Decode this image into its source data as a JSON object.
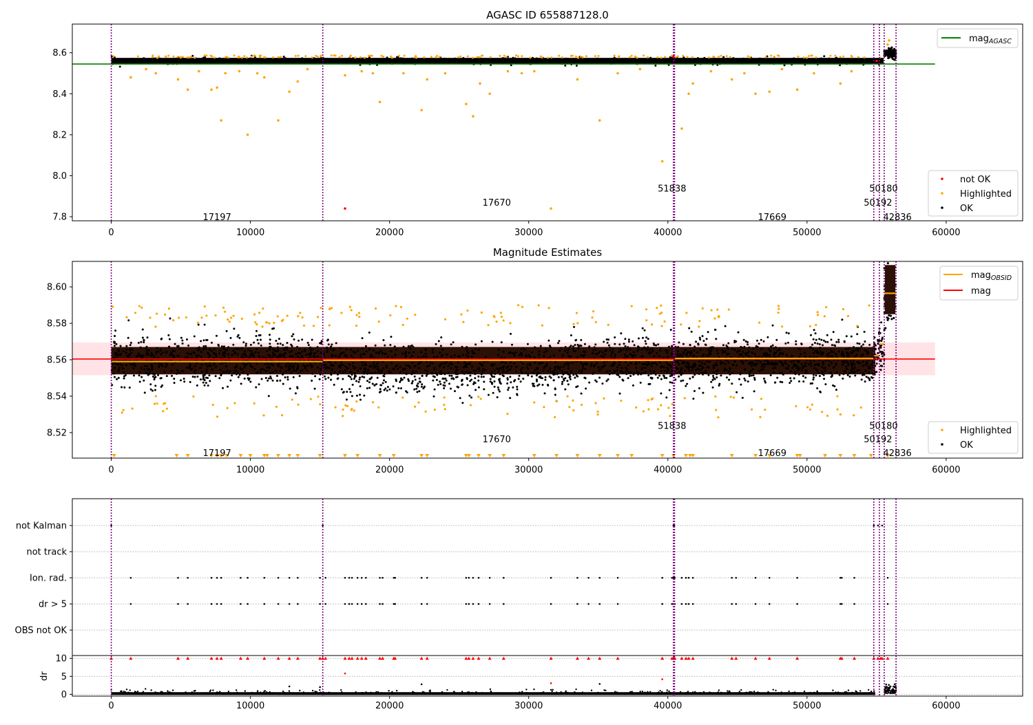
{
  "titles": {
    "top": "AGASC ID 655887128.0",
    "middle": "Magnitude Estimates"
  },
  "colors": {
    "ok": "#000000",
    "highlighted": "#ffa500",
    "not_ok": "#ff0000",
    "mag_agasc": "#008000",
    "mag_obsid": "#ffa500",
    "mag": "#ff0000",
    "obs_boundary": "#800080",
    "band": "#ffc0c8",
    "dense_band": "#2b1005"
  },
  "obsids": [
    {
      "label": "17197",
      "start": 0
    },
    {
      "label": "17670",
      "start": 15200
    },
    {
      "label": "51838",
      "start": 40400
    },
    {
      "label": "17669",
      "start": 40480
    },
    {
      "label": "50180",
      "start": 54800
    },
    {
      "label": "50192",
      "start": 55200
    },
    {
      "label": "42836",
      "start": 55550
    },
    {
      "label": "",
      "start": 56400
    }
  ],
  "chart_data": [
    {
      "type": "scatter",
      "name": "top",
      "title": "AGASC ID 655887128.0",
      "xlabel": "",
      "ylabel": "",
      "xlim": [
        -2800,
        65500
      ],
      "ylim": [
        7.78,
        8.74
      ],
      "xticks": [
        0,
        10000,
        20000,
        30000,
        40000,
        50000,
        60000
      ],
      "yticks": [
        7.8,
        8.0,
        8.2,
        8.4,
        8.6
      ],
      "ytick_labels": [
        "7.8",
        "8.0",
        "8.2",
        "8.4",
        "8.6"
      ],
      "legend_upper": {
        "position": "upper right",
        "entries": [
          {
            "label": "mag",
            "sub": "AGASC",
            "kind": "line",
            "color": "#008000"
          }
        ]
      },
      "legend_lower": {
        "position": "lower right",
        "entries": [
          {
            "label": "not OK",
            "kind": "dot",
            "color": "#ff0000"
          },
          {
            "label": "Highlighted",
            "kind": "dot",
            "color": "#ffa500"
          },
          {
            "label": "OK",
            "kind": "dot",
            "color": "#000000"
          }
        ]
      },
      "mag_agasc": 8.545,
      "ok_band": [
        8.545,
        8.575
      ],
      "obsid_labels_y": [
        {
          "label": "17197",
          "x": 7600,
          "y": 7.8
        },
        {
          "label": "17670",
          "x": 27700,
          "y": 7.87
        },
        {
          "label": "51838",
          "x": 40300,
          "y": 7.94
        },
        {
          "label": "17669",
          "x": 47500,
          "y": 7.8
        },
        {
          "label": "50180",
          "x": 55500,
          "y": 7.94
        },
        {
          "label": "50192",
          "x": 55100,
          "y": 7.87
        },
        {
          "label": "42836",
          "x": 56500,
          "y": 7.8
        }
      ],
      "highlighted_points": [
        [
          1400,
          8.48
        ],
        [
          4800,
          8.47
        ],
        [
          5500,
          8.42
        ],
        [
          7200,
          8.42
        ],
        [
          7600,
          8.43
        ],
        [
          7900,
          8.27
        ],
        [
          9800,
          8.2
        ],
        [
          11000,
          8.48
        ],
        [
          12000,
          8.27
        ],
        [
          12800,
          8.41
        ],
        [
          13400,
          8.46
        ],
        [
          16800,
          8.49
        ],
        [
          19300,
          8.36
        ],
        [
          22300,
          8.32
        ],
        [
          22700,
          8.47
        ],
        [
          25500,
          8.35
        ],
        [
          26000,
          8.29
        ],
        [
          26500,
          8.45
        ],
        [
          27200,
          8.4
        ],
        [
          31600,
          7.84
        ],
        [
          33500,
          8.47
        ],
        [
          35100,
          8.27
        ],
        [
          39600,
          8.07
        ],
        [
          41000,
          8.23
        ],
        [
          41500,
          8.4
        ],
        [
          41800,
          8.45
        ],
        [
          44600,
          8.47
        ],
        [
          46300,
          8.4
        ],
        [
          47300,
          8.41
        ],
        [
          49300,
          8.42
        ],
        [
          52400,
          8.45
        ],
        [
          2500,
          8.52
        ],
        [
          3200,
          8.5
        ],
        [
          6300,
          8.51
        ],
        [
          8200,
          8.5
        ],
        [
          9200,
          8.51
        ],
        [
          10500,
          8.5
        ],
        [
          14100,
          8.52
        ],
        [
          18000,
          8.51
        ],
        [
          18800,
          8.5
        ],
        [
          21000,
          8.5
        ],
        [
          24000,
          8.5
        ],
        [
          28500,
          8.51
        ],
        [
          29500,
          8.5
        ],
        [
          30400,
          8.51
        ],
        [
          36400,
          8.5
        ],
        [
          38000,
          8.52
        ],
        [
          43100,
          8.51
        ],
        [
          45500,
          8.5
        ],
        [
          48200,
          8.52
        ],
        [
          50500,
          8.5
        ],
        [
          53200,
          8.51
        ],
        [
          55800,
          8.64
        ],
        [
          55900,
          8.66
        ]
      ],
      "not_ok_points": [
        [
          16800,
          7.84
        ],
        [
          40400,
          8.58
        ],
        [
          55000,
          8.56
        ]
      ]
    },
    {
      "type": "scatter",
      "name": "middle",
      "title": "Magnitude Estimates",
      "xlabel": "",
      "ylabel": "",
      "xlim": [
        -2800,
        65500
      ],
      "ylim": [
        8.506,
        8.614
      ],
      "xticks": [
        0,
        10000,
        20000,
        30000,
        40000,
        50000,
        60000
      ],
      "yticks": [
        8.52,
        8.54,
        8.56,
        8.58,
        8.6
      ],
      "ytick_labels": [
        "8.52",
        "8.54",
        "8.56",
        "8.58",
        "8.60"
      ],
      "legend_upper": {
        "position": "upper right",
        "entries": [
          {
            "label": "mag",
            "sub": "OBSID",
            "kind": "line",
            "color": "#ffa500"
          },
          {
            "label": "mag",
            "sub": "",
            "kind": "line",
            "color": "#ff0000"
          }
        ]
      },
      "legend_lower": {
        "position": "lower right",
        "entries": [
          {
            "label": "Highlighted",
            "kind": "dot",
            "color": "#ffa500"
          },
          {
            "label": "OK",
            "kind": "dot",
            "color": "#000000"
          }
        ]
      },
      "mag": 8.5604,
      "mag_band": [
        8.5515,
        8.5695
      ],
      "mag_obsid": [
        {
          "x0": 0,
          "x1": 15200,
          "y": 8.559
        },
        {
          "x0": 15200,
          "x1": 40400,
          "y": 8.5597
        },
        {
          "x0": 40480,
          "x1": 54800,
          "y": 8.5607
        },
        {
          "x0": 54800,
          "x1": 55200,
          "y": 8.5622
        },
        {
          "x0": 55200,
          "x1": 55550,
          "y": 8.5686
        },
        {
          "x0": 55550,
          "x1": 56400,
          "y": 8.5965
        }
      ],
      "obsid_labels_y": [
        {
          "label": "17197",
          "x": 7600,
          "y": 8.509
        },
        {
          "label": "17670",
          "x": 27700,
          "y": 8.5165
        },
        {
          "label": "51838",
          "x": 40300,
          "y": 8.524
        },
        {
          "label": "17669",
          "x": 47500,
          "y": 8.509
        },
        {
          "label": "50180",
          "x": 55500,
          "y": 8.524
        },
        {
          "label": "50192",
          "x": 55100,
          "y": 8.5165
        },
        {
          "label": "42836",
          "x": 56500,
          "y": 8.509
        }
      ]
    },
    {
      "type": "scatter",
      "name": "flags",
      "xlabel": "",
      "ylabel": "",
      "xlim": [
        -2800,
        65500
      ],
      "categories": [
        "not Kalman",
        "not track",
        "Ion. rad.",
        "dr > 5",
        "OBS not OK"
      ],
      "flag_points": {
        "not Kalman": [
          0,
          15200,
          40400,
          40450,
          54800,
          55100,
          55400
        ],
        "not track": [],
        "Ion. rad.": [
          1400,
          4800,
          5500,
          7200,
          7600,
          7900,
          9300,
          9800,
          11000,
          12000,
          12800,
          13400,
          15000,
          15400,
          16800,
          17100,
          17300,
          17700,
          18000,
          18300,
          19300,
          19500,
          20300,
          20400,
          22300,
          22700,
          25500,
          25700,
          26000,
          26400,
          27200,
          28200,
          31600,
          33500,
          34300,
          35100,
          36400,
          39600,
          40300,
          40400,
          40500,
          41000,
          41300,
          41500,
          41800,
          44600,
          44900,
          46300,
          47300,
          49300,
          52400,
          52500,
          53400,
          55800
        ],
        "dr > 5": [
          1400,
          4800,
          5500,
          7200,
          7600,
          7900,
          9300,
          9800,
          11000,
          12000,
          12800,
          13400,
          15000,
          15400,
          16800,
          17100,
          17300,
          17700,
          18000,
          18300,
          19300,
          19500,
          20300,
          20400,
          22300,
          22700,
          25500,
          25700,
          26000,
          26400,
          27200,
          28200,
          31600,
          33500,
          34300,
          35100,
          36400,
          39600,
          40300,
          40400,
          40500,
          41000,
          41300,
          41500,
          41800,
          44600,
          44900,
          46300,
          47300,
          49300,
          52400,
          52500,
          53400,
          55800
        ],
        "OBS not OK": []
      }
    },
    {
      "type": "scatter",
      "name": "dr",
      "xlabel": "",
      "ylabel": "dr",
      "xlim": [
        -2800,
        65500
      ],
      "ylim": [
        -0.5,
        10.8
      ],
      "yticks": [
        0,
        5,
        10
      ],
      "ytick_labels": [
        "0",
        "5",
        "10"
      ],
      "xticks": [
        0,
        10000,
        20000,
        30000,
        40000,
        50000,
        60000
      ],
      "outlier_points": [
        [
          16800,
          5.8
        ],
        [
          31600,
          3.1
        ],
        [
          39600,
          4.2
        ],
        [
          15000,
          2.0
        ],
        [
          22300,
          2.8
        ],
        [
          35100,
          2.9
        ],
        [
          12800,
          2.2
        ]
      ],
      "capped_value": 10
    }
  ]
}
